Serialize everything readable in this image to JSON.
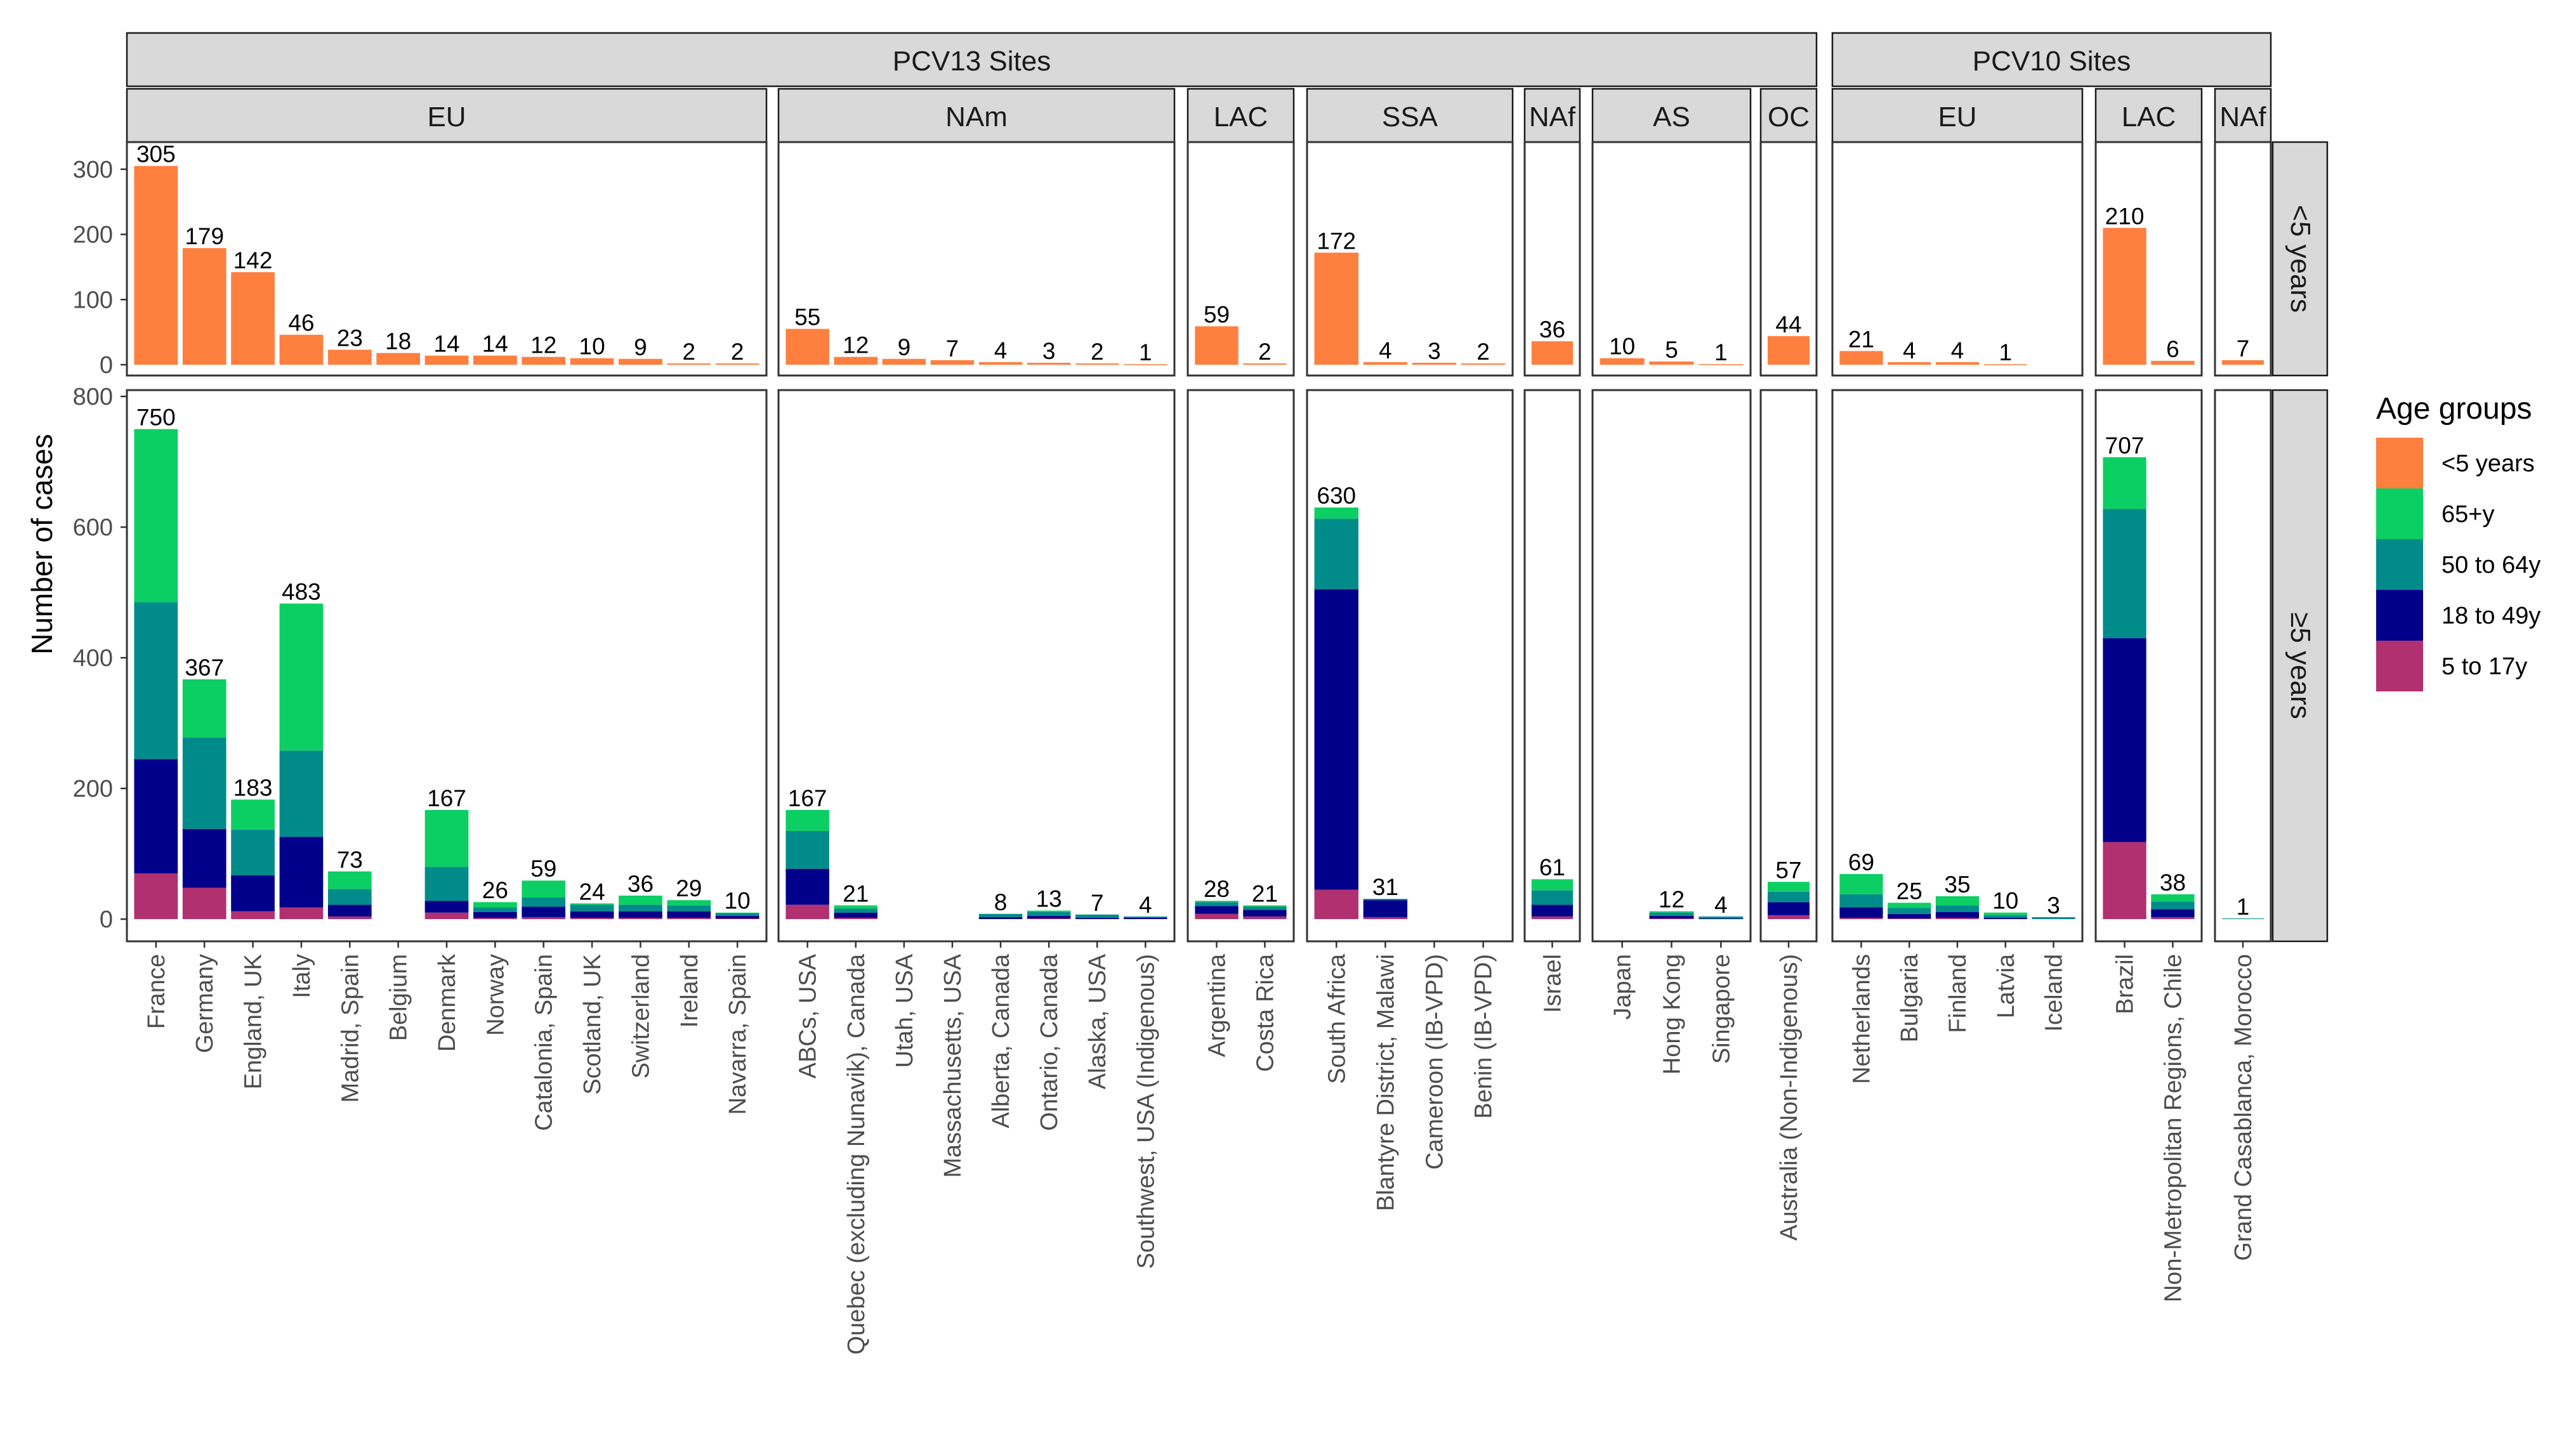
{
  "chart_data": {
    "type": "bar",
    "stacked": true,
    "ylabel": "Number of cases",
    "legend": {
      "title": "Age groups",
      "placement": "right",
      "entries": [
        {
          "key": "u5",
          "label": "<5 years",
          "color": "#ff7f3f"
        },
        {
          "key": "s65",
          "label": "65+y",
          "color": "#0ccf63"
        },
        {
          "key": "s50",
          "label": "50 to 64y",
          "color": "#008b8b"
        },
        {
          "key": "s18",
          "label": "18 to 49y",
          "color": "#00008b"
        },
        {
          "key": "s5",
          "label": "5 to 17y",
          "color": "#b03070"
        }
      ]
    },
    "row_strips": [
      "<5 years",
      "≥5 years"
    ],
    "top_row": {
      "ylim": [
        0,
        330
      ],
      "ticks": [
        0,
        100,
        200,
        300
      ]
    },
    "bottom_row": {
      "ylim": [
        0,
        800
      ],
      "ticks": [
        0,
        200,
        400,
        600,
        800
      ]
    },
    "pcv_groups": [
      {
        "label": "PCV13 Sites",
        "first_panel": 0,
        "last_panel": 6
      },
      {
        "label": "PCV10 Sites",
        "first_panel": 7,
        "last_panel": 9
      }
    ],
    "panels": [
      {
        "region": "EU",
        "sites": [
          {
            "name": "France",
            "u5": 305,
            "total": 750,
            "s5": 70,
            "s18": 175,
            "s50": 240,
            "s65": 265
          },
          {
            "name": "Germany",
            "u5": 179,
            "total": 367,
            "s5": 48,
            "s18": 90,
            "s50": 140,
            "s65": 89
          },
          {
            "name": "England, UK",
            "u5": 142,
            "total": 183,
            "s5": 12,
            "s18": 55,
            "s50": 70,
            "s65": 46
          },
          {
            "name": "Italy",
            "u5": 46,
            "total": 483,
            "s5": 18,
            "s18": 108,
            "s50": 132,
            "s65": 225
          },
          {
            "name": "Madrid, Spain",
            "u5": 23,
            "total": 73,
            "s5": 4,
            "s18": 18,
            "s50": 24,
            "s65": 27
          },
          {
            "name": "Belgium",
            "u5": 18,
            "total": null,
            "s5": 0,
            "s18": 0,
            "s50": 0,
            "s65": 0
          },
          {
            "name": "Denmark",
            "u5": 14,
            "total": 167,
            "s5": 10,
            "s18": 18,
            "s50": 52,
            "s65": 87
          },
          {
            "name": "Norway",
            "u5": 14,
            "total": 26,
            "s5": 2,
            "s18": 9,
            "s50": 7,
            "s65": 8
          },
          {
            "name": "Catalonia, Spain",
            "u5": 12,
            "total": 59,
            "s5": 3,
            "s18": 16,
            "s50": 14,
            "s65": 26
          },
          {
            "name": "Scotland, UK",
            "u5": 10,
            "total": 24,
            "s5": 2,
            "s18": 10,
            "s50": 10,
            "s65": 2
          },
          {
            "name": "Switzerland",
            "u5": 9,
            "total": 36,
            "s5": 2,
            "s18": 10,
            "s50": 10,
            "s65": 14
          },
          {
            "name": "Ireland",
            "u5": 2,
            "total": 29,
            "s5": 2,
            "s18": 10,
            "s50": 9,
            "s65": 8
          },
          {
            "name": "Navarra, Spain",
            "u5": 2,
            "total": 10,
            "s5": 1,
            "s18": 4,
            "s50": 4,
            "s65": 1
          }
        ]
      },
      {
        "region": "NAm",
        "sites": [
          {
            "name": "ABCs, USA",
            "u5": 55,
            "total": 167,
            "s5": 22,
            "s18": 55,
            "s50": 58,
            "s65": 32
          },
          {
            "name": "Quebec (excluding Nunavik), Canada",
            "u5": 12,
            "total": 21,
            "s5": 2,
            "s18": 8,
            "s50": 6,
            "s65": 5
          },
          {
            "name": "Utah, USA",
            "u5": 9,
            "total": null,
            "s5": 0,
            "s18": 0,
            "s50": 0,
            "s65": 0
          },
          {
            "name": "Massachusetts, USA",
            "u5": 7,
            "total": null,
            "s5": 0,
            "s18": 0,
            "s50": 0,
            "s65": 0
          },
          {
            "name": "Alberta, Canada",
            "u5": 4,
            "total": 8,
            "s5": 0,
            "s18": 3,
            "s50": 5,
            "s65": 0
          },
          {
            "name": "Ontario, Canada",
            "u5": 3,
            "total": 13,
            "s5": 1,
            "s18": 4,
            "s50": 6,
            "s65": 2
          },
          {
            "name": "Alaska, USA",
            "u5": 2,
            "total": 7,
            "s5": 0,
            "s18": 2,
            "s50": 5,
            "s65": 0
          },
          {
            "name": "Southwest, USA (Indigenous)",
            "u5": 1,
            "total": 4,
            "s5": 0,
            "s18": 2,
            "s50": 2,
            "s65": 0
          }
        ]
      },
      {
        "region": "LAC",
        "sites": [
          {
            "name": "Argentina",
            "u5": 59,
            "total": 28,
            "s5": 8,
            "s18": 12,
            "s50": 6,
            "s65": 2
          },
          {
            "name": "Costa Rica",
            "u5": 2,
            "total": 21,
            "s5": 4,
            "s18": 10,
            "s50": 5,
            "s65": 2
          }
        ]
      },
      {
        "region": "SSA",
        "sites": [
          {
            "name": "South Africa",
            "u5": 172,
            "total": 630,
            "s5": 45,
            "s18": 460,
            "s50": 108,
            "s65": 17
          },
          {
            "name": "Blantyre District, Malawi",
            "u5": 4,
            "total": 31,
            "s5": 3,
            "s18": 26,
            "s50": 2,
            "s65": 0
          },
          {
            "name": "Cameroon (IB-VPD)",
            "u5": 3,
            "total": null,
            "s5": 0,
            "s18": 0,
            "s50": 0,
            "s65": 0
          },
          {
            "name": "Benin (IB-VPD)",
            "u5": 2,
            "total": null,
            "s5": 0,
            "s18": 0,
            "s50": 0,
            "s65": 0
          }
        ]
      },
      {
        "region": "NAf",
        "sites": [
          {
            "name": "Israel",
            "u5": 36,
            "total": 61,
            "s5": 4,
            "s18": 18,
            "s50": 22,
            "s65": 17
          }
        ]
      },
      {
        "region": "AS",
        "sites": [
          {
            "name": "Japan",
            "u5": 10,
            "total": null,
            "s5": 0,
            "s18": 0,
            "s50": 0,
            "s65": 0
          },
          {
            "name": "Hong Kong",
            "u5": 5,
            "total": 12,
            "s5": 1,
            "s18": 4,
            "s50": 5,
            "s65": 2
          },
          {
            "name": "Singapore",
            "u5": 1,
            "total": 4,
            "s5": 0,
            "s18": 1,
            "s50": 3,
            "s65": 0
          }
        ]
      },
      {
        "region": "OC",
        "sites": [
          {
            "name": "Australia (Non-Indigenous)",
            "u5": 44,
            "total": 57,
            "s5": 6,
            "s18": 20,
            "s50": 16,
            "s65": 15
          }
        ]
      },
      {
        "region": "EU",
        "sites": [
          {
            "name": "Netherlands",
            "u5": 21,
            "total": 69,
            "s5": 2,
            "s18": 16,
            "s50": 20,
            "s65": 31
          },
          {
            "name": "Bulgaria",
            "u5": 4,
            "total": 25,
            "s5": 1,
            "s18": 7,
            "s50": 9,
            "s65": 8
          },
          {
            "name": "Finland",
            "u5": 4,
            "total": 35,
            "s5": 2,
            "s18": 9,
            "s50": 10,
            "s65": 14
          },
          {
            "name": "Latvia",
            "u5": 1,
            "total": 10,
            "s5": 0,
            "s18": 2,
            "s50": 4,
            "s65": 4
          },
          {
            "name": "Iceland",
            "u5": null,
            "total": 3,
            "s5": 0,
            "s18": 0,
            "s50": 3,
            "s65": 0
          }
        ]
      },
      {
        "region": "LAC",
        "sites": [
          {
            "name": "Brazil",
            "u5": 210,
            "total": 707,
            "s5": 118,
            "s18": 312,
            "s50": 198,
            "s65": 79
          },
          {
            "name": "Non-Metropolitan Regions, Chile",
            "u5": 6,
            "total": 38,
            "s5": 3,
            "s18": 12,
            "s50": 12,
            "s65": 11
          }
        ]
      },
      {
        "region": "NAf",
        "sites": [
          {
            "name": "Grand Casablanca, Morocco",
            "u5": 7,
            "total": 1,
            "s5": 0,
            "s18": 0,
            "s50": 1,
            "s65": 0
          }
        ]
      }
    ]
  }
}
